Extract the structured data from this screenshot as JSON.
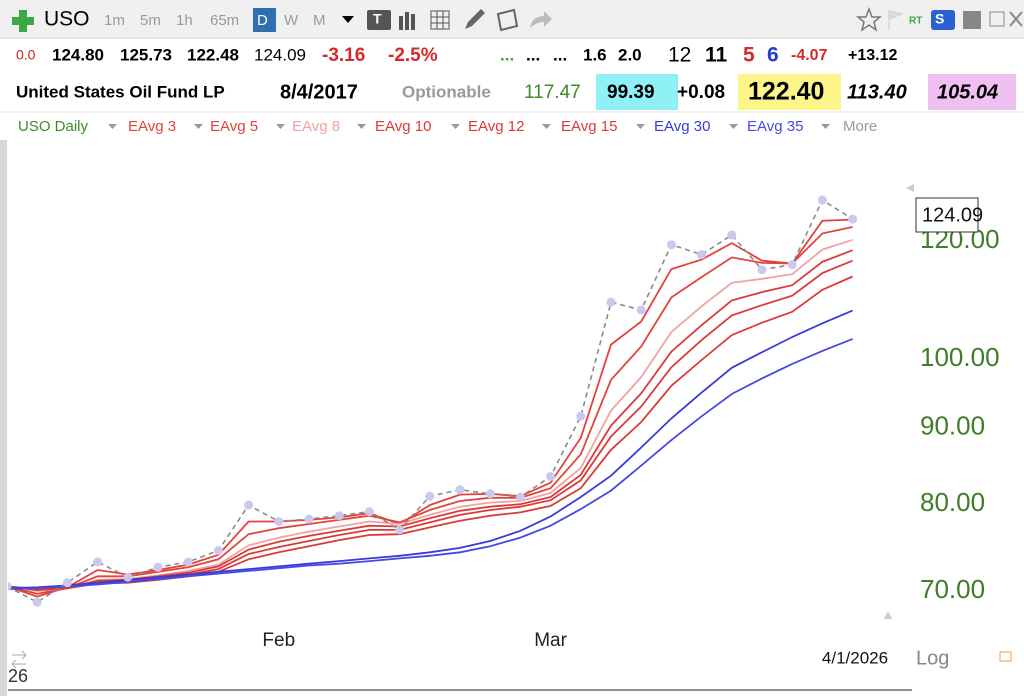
{
  "toolbar": {
    "symbol": "USO",
    "timeframes": [
      "1m",
      "5m",
      "1h",
      "65m",
      "D",
      "W",
      "M"
    ],
    "selected": "D",
    "type_badge": "T",
    "rt_badge": "RT",
    "s_badge": "S"
  },
  "quote": {
    "row1": [
      "0.0",
      "124.80",
      "125.73",
      "122.48",
      "124.09",
      "-3.16",
      "-2.5%",
      "...",
      "...",
      "...",
      "1.6",
      "2.0",
      "12",
      "11",
      "5",
      "6",
      "-4.07",
      "+13.12"
    ],
    "row2": [
      "United States Oil Fund LP",
      "8/4/2017",
      "Optionable",
      "117.47",
      "99.39",
      "+0.08",
      "122.40",
      "113.40",
      "105.04"
    ]
  },
  "legend_more": "More",
  "footer": {
    "date": "4/1/2026",
    "scale": "Log",
    "left_label": "26"
  },
  "chart_data": {
    "type": "line",
    "log_scale": true,
    "grid": false,
    "categories": [
      null,
      null,
      null,
      null,
      null,
      null,
      null,
      null,
      null,
      "Feb",
      null,
      null,
      null,
      null,
      null,
      null,
      null,
      null,
      "Mar",
      null,
      null,
      null,
      null,
      null,
      null,
      null,
      null,
      null,
      null
    ],
    "ylim": [
      60.1,
      139.1
    ],
    "yticks": [
      {
        "value": 70,
        "label": "70.00"
      },
      {
        "value": 80,
        "label": "80.00"
      },
      {
        "value": 90,
        "label": "90.00"
      },
      {
        "value": 100,
        "label": "100.00"
      },
      {
        "value": 120,
        "label": "120.00"
      }
    ],
    "series": [
      {
        "name": "USO Daily",
        "color": "#8a8a8a",
        "line_style": "dashed",
        "markers": true,
        "marker_color": "#cbc8f0",
        "values": [
          70.5,
          68.8,
          70.9,
          73.2,
          71.5,
          72.6,
          73.2,
          74.5,
          79.9,
          77.9,
          78.2,
          78.6,
          79.1,
          76.9,
          81.0,
          81.8,
          81.3,
          80.9,
          83.5,
          91.6,
          109.2,
          107.9,
          119.3,
          117.5,
          121.1,
          114.8,
          115.7,
          127.8,
          124.1
        ]
      },
      {
        "name": "EAvg 3",
        "color": "#e5413a",
        "values": [
          70.5,
          69.4,
          70.4,
          72.3,
          71.8,
          72.3,
          72.9,
          74.0,
          77.9,
          77.9,
          78.1,
          78.4,
          78.9,
          77.6,
          79.9,
          81.2,
          81.3,
          81.0,
          82.7,
          88.6,
          102.3,
          106.0,
          114.9,
          116.6,
          119.6,
          116.4,
          115.9,
          123.8,
          124.0
        ]
      },
      {
        "name": "EAvg 5",
        "color": "#e0443c",
        "values": [
          70.5,
          69.7,
          70.3,
          71.6,
          71.6,
          72.1,
          72.6,
          73.5,
          76.4,
          77.1,
          77.6,
          78.1,
          78.6,
          77.8,
          79.3,
          80.4,
          80.8,
          80.8,
          82.0,
          86.4,
          96.9,
          102.0,
          110.0,
          113.5,
          117.0,
          116.0,
          115.9,
          121.4,
          122.6
        ]
      },
      {
        "name": "EAvg 8",
        "color": "#f0a3a3",
        "values": [
          70.5,
          70.0,
          70.3,
          71.2,
          71.3,
          71.7,
          72.2,
          72.9,
          75.1,
          76.0,
          76.7,
          77.3,
          77.9,
          77.6,
          78.7,
          79.7,
          80.2,
          80.4,
          81.4,
          84.6,
          92.4,
          97.3,
          104.3,
          108.5,
          112.5,
          113.2,
          114.0,
          118.4,
          120.2
        ]
      },
      {
        "name": "EAvg 10",
        "color": "#da3b38",
        "values": [
          70.5,
          70.1,
          70.3,
          71.1,
          71.2,
          71.6,
          72.0,
          72.7,
          74.6,
          75.5,
          76.2,
          76.8,
          77.4,
          77.3,
          78.3,
          79.2,
          79.7,
          80.0,
          80.9,
          83.7,
          90.3,
          94.9,
          101.2,
          105.4,
          109.5,
          110.9,
          112.1,
          116.2,
          118.3
        ]
      },
      {
        "name": "EAvg 12",
        "color": "#da3b38",
        "values": [
          70.5,
          70.1,
          70.3,
          70.9,
          71.0,
          71.4,
          71.8,
          72.4,
          74.1,
          74.9,
          75.6,
          76.3,
          76.9,
          76.9,
          77.8,
          78.7,
          79.3,
          79.7,
          80.5,
          83.0,
          88.8,
          93.0,
          98.8,
          103.0,
          107.0,
          108.7,
          110.3,
          114.2,
          116.4
        ]
      },
      {
        "name": "EAvg 15",
        "color": "#da3b38",
        "values": [
          70.5,
          70.2,
          70.3,
          70.8,
          70.9,
          71.2,
          71.6,
          72.1,
          73.5,
          74.3,
          75.0,
          75.7,
          76.3,
          76.4,
          77.2,
          78.0,
          78.6,
          79.0,
          79.8,
          82.0,
          87.0,
          90.8,
          96.0,
          99.9,
          103.8,
          105.8,
          107.6,
          111.3,
          113.6
        ]
      },
      {
        "name": "EAvg 30",
        "color": "#3a3ad8",
        "values": [
          70.3,
          70.4,
          70.6,
          70.9,
          71.2,
          71.5,
          71.8,
          72.1,
          72.4,
          72.7,
          73.0,
          73.3,
          73.6,
          73.9,
          74.3,
          74.8,
          75.6,
          76.8,
          78.5,
          80.9,
          83.6,
          87.3,
          91.3,
          95.0,
          98.7,
          101.1,
          103.5,
          105.7,
          107.8
        ]
      },
      {
        "name": "EAvg 35",
        "color": "#4848e2",
        "values": [
          70.2,
          70.3,
          70.5,
          70.7,
          71.0,
          71.3,
          71.6,
          71.9,
          72.2,
          72.5,
          72.8,
          73.0,
          73.3,
          73.6,
          73.9,
          74.3,
          75.0,
          76.0,
          77.4,
          79.4,
          81.7,
          84.9,
          88.3,
          91.6,
          94.8,
          97.1,
          99.3,
          101.3,
          103.2
        ]
      }
    ]
  }
}
